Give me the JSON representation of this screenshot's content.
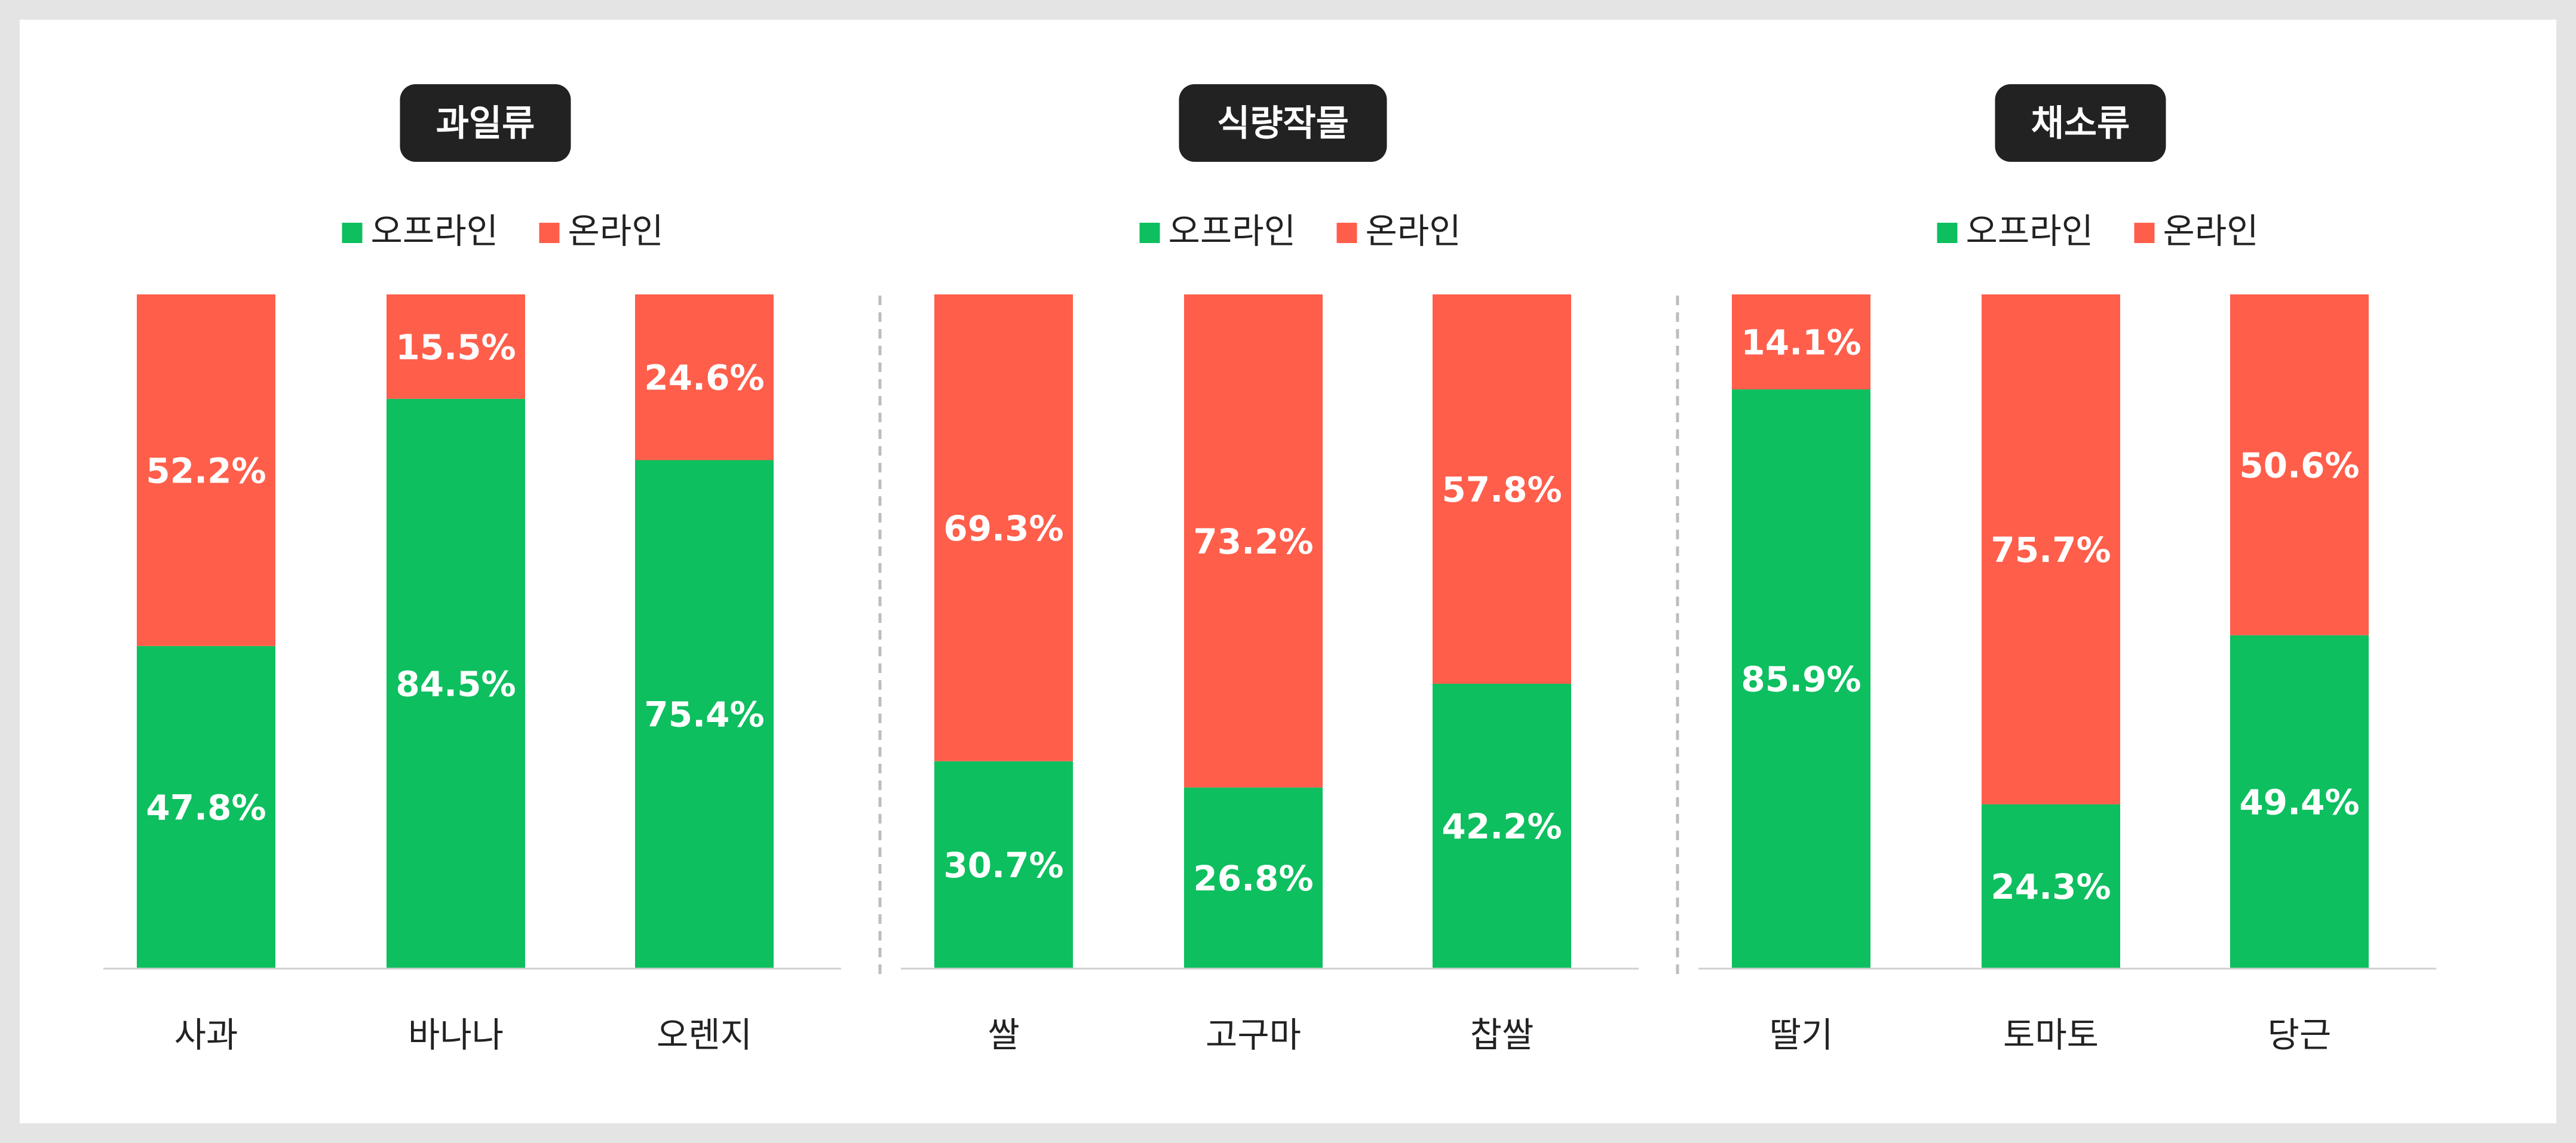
{
  "colors": {
    "offline": "#0dbf5f",
    "online": "#ff5e4b"
  },
  "chart_data": [
    {
      "type": "bar",
      "stacked": true,
      "title": "과일류",
      "categories": [
        "사과",
        "바나나",
        "오렌지"
      ],
      "series": [
        {
          "name": "오프라인",
          "values": [
            47.8,
            84.5,
            75.4
          ]
        },
        {
          "name": "온라인",
          "values": [
            52.2,
            15.5,
            24.6
          ]
        }
      ],
      "ylim": [
        0,
        100
      ],
      "legend": "top-center"
    },
    {
      "type": "bar",
      "stacked": true,
      "title": "식량작물",
      "categories": [
        "쌀",
        "고구마",
        "찹쌀"
      ],
      "series": [
        {
          "name": "오프라인",
          "values": [
            30.7,
            26.8,
            42.2
          ]
        },
        {
          "name": "온라인",
          "values": [
            69.3,
            73.2,
            57.8
          ]
        }
      ],
      "ylim": [
        0,
        100
      ],
      "legend": "top-center"
    },
    {
      "type": "bar",
      "stacked": true,
      "title": "채소류",
      "categories": [
        "딸기",
        "토마토",
        "당근"
      ],
      "series": [
        {
          "name": "오프라인",
          "values": [
            85.9,
            24.3,
            49.4
          ]
        },
        {
          "name": "온라인",
          "values": [
            14.1,
            75.7,
            50.6
          ]
        }
      ],
      "ylim": [
        0,
        100
      ],
      "legend": "top-center"
    }
  ]
}
